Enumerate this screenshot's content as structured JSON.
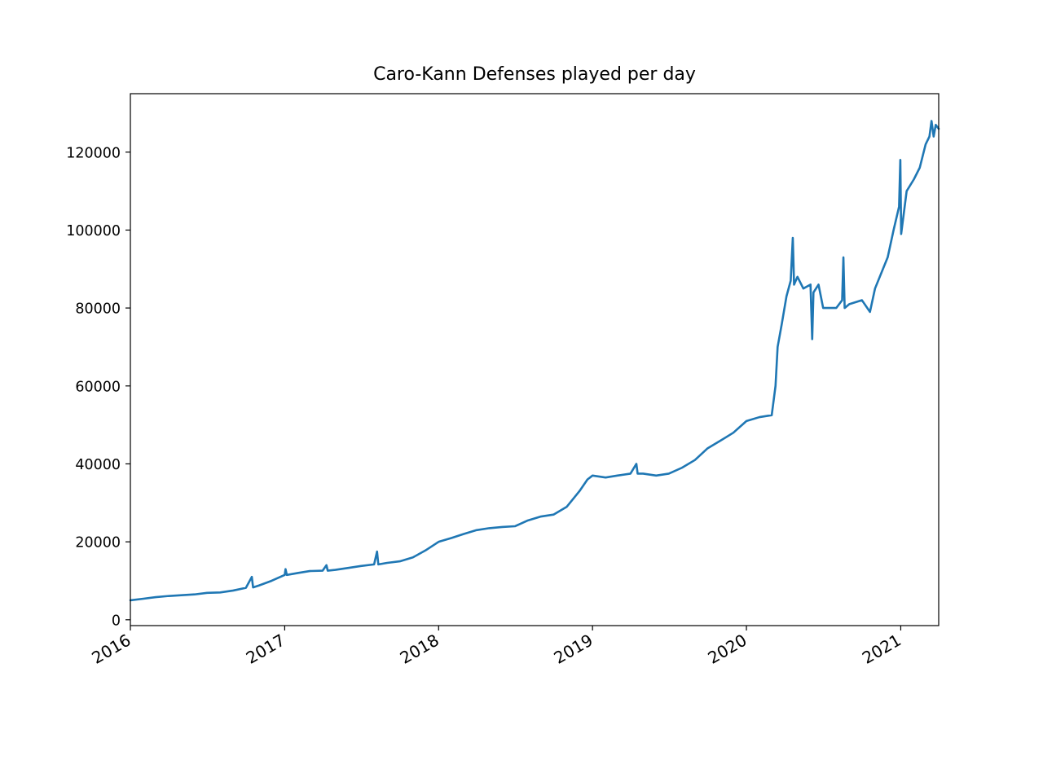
{
  "chart_data": {
    "type": "line",
    "title": "Caro-Kann Defenses played per day",
    "xlabel": "",
    "ylabel": "",
    "x_range": [
      "2016-01-01",
      "2021-04-01"
    ],
    "ylim": [
      -1500,
      135000
    ],
    "x_ticks": [
      {
        "label": "2016",
        "date": "2016-01-01"
      },
      {
        "label": "2017",
        "date": "2017-01-01"
      },
      {
        "label": "2018",
        "date": "2018-01-01"
      },
      {
        "label": "2019",
        "date": "2019-01-01"
      },
      {
        "label": "2020",
        "date": "2020-01-01"
      },
      {
        "label": "2021",
        "date": "2021-01-01"
      }
    ],
    "y_ticks": [
      {
        "label": "0",
        "value": 0
      },
      {
        "label": "20000",
        "value": 20000
      },
      {
        "label": "40000",
        "value": 40000
      },
      {
        "label": "60000",
        "value": 60000
      },
      {
        "label": "80000",
        "value": 80000
      },
      {
        "label": "100000",
        "value": 100000
      },
      {
        "label": "120000",
        "value": 120000
      }
    ],
    "grid": false,
    "series": [
      {
        "color": "#1f77b4",
        "points": [
          [
            "2016-01-01",
            5000
          ],
          [
            "2016-02-01",
            5400
          ],
          [
            "2016-03-01",
            5800
          ],
          [
            "2016-04-01",
            6100
          ],
          [
            "2016-05-01",
            6300
          ],
          [
            "2016-06-01",
            6500
          ],
          [
            "2016-07-01",
            6900
          ],
          [
            "2016-08-01",
            7000
          ],
          [
            "2016-09-01",
            7500
          ],
          [
            "2016-10-01",
            8200
          ],
          [
            "2016-10-15",
            11000
          ],
          [
            "2016-10-18",
            8300
          ],
          [
            "2016-11-01",
            8800
          ],
          [
            "2016-12-01",
            10000
          ],
          [
            "2017-01-01",
            11500
          ],
          [
            "2017-01-03",
            13000
          ],
          [
            "2017-01-06",
            11500
          ],
          [
            "2017-02-01",
            12000
          ],
          [
            "2017-03-01",
            12500
          ],
          [
            "2017-04-01",
            12600
          ],
          [
            "2017-04-10",
            14000
          ],
          [
            "2017-04-13",
            12600
          ],
          [
            "2017-05-01",
            12800
          ],
          [
            "2017-06-01",
            13300
          ],
          [
            "2017-07-01",
            13800
          ],
          [
            "2017-08-01",
            14200
          ],
          [
            "2017-08-08",
            17500
          ],
          [
            "2017-08-11",
            14200
          ],
          [
            "2017-09-01",
            14600
          ],
          [
            "2017-10-01",
            15000
          ],
          [
            "2017-11-01",
            16000
          ],
          [
            "2017-12-01",
            17800
          ],
          [
            "2018-01-01",
            20000
          ],
          [
            "2018-02-01",
            21000
          ],
          [
            "2018-03-01",
            22000
          ],
          [
            "2018-04-01",
            23000
          ],
          [
            "2018-05-01",
            23500
          ],
          [
            "2018-06-01",
            23800
          ],
          [
            "2018-07-01",
            24000
          ],
          [
            "2018-08-01",
            25500
          ],
          [
            "2018-09-01",
            26500
          ],
          [
            "2018-10-01",
            27000
          ],
          [
            "2018-11-01",
            29000
          ],
          [
            "2018-12-01",
            33000
          ],
          [
            "2018-12-20",
            36000
          ],
          [
            "2019-01-01",
            37000
          ],
          [
            "2019-02-01",
            36500
          ],
          [
            "2019-03-01",
            37000
          ],
          [
            "2019-04-01",
            37500
          ],
          [
            "2019-04-15",
            40000
          ],
          [
            "2019-04-18",
            37500
          ],
          [
            "2019-05-01",
            37500
          ],
          [
            "2019-06-01",
            37000
          ],
          [
            "2019-07-01",
            37500
          ],
          [
            "2019-08-01",
            39000
          ],
          [
            "2019-09-01",
            41000
          ],
          [
            "2019-10-01",
            44000
          ],
          [
            "2019-11-01",
            46000
          ],
          [
            "2019-12-01",
            48000
          ],
          [
            "2020-01-01",
            51000
          ],
          [
            "2020-02-01",
            52000
          ],
          [
            "2020-03-01",
            52500
          ],
          [
            "2020-03-10",
            60000
          ],
          [
            "2020-03-15",
            70000
          ],
          [
            "2020-03-25",
            76000
          ],
          [
            "2020-04-05",
            83000
          ],
          [
            "2020-04-15",
            87000
          ],
          [
            "2020-04-20",
            98000
          ],
          [
            "2020-04-23",
            86000
          ],
          [
            "2020-05-01",
            88000
          ],
          [
            "2020-05-15",
            85000
          ],
          [
            "2020-06-01",
            86000
          ],
          [
            "2020-06-05",
            72000
          ],
          [
            "2020-06-08",
            84000
          ],
          [
            "2020-06-20",
            86000
          ],
          [
            "2020-07-01",
            80000
          ],
          [
            "2020-08-01",
            80000
          ],
          [
            "2020-08-15",
            82000
          ],
          [
            "2020-08-18",
            93000
          ],
          [
            "2020-08-21",
            80000
          ],
          [
            "2020-09-01",
            81000
          ],
          [
            "2020-10-01",
            82000
          ],
          [
            "2020-10-20",
            79000
          ],
          [
            "2020-11-01",
            85000
          ],
          [
            "2020-12-01",
            93000
          ],
          [
            "2020-12-15",
            100000
          ],
          [
            "2020-12-28",
            106000
          ],
          [
            "2020-12-31",
            118000
          ],
          [
            "2021-01-02",
            99000
          ],
          [
            "2021-01-15",
            110000
          ],
          [
            "2021-02-01",
            113000
          ],
          [
            "2021-02-15",
            116000
          ],
          [
            "2021-03-01",
            122000
          ],
          [
            "2021-03-10",
            124000
          ],
          [
            "2021-03-15",
            128000
          ],
          [
            "2021-03-20",
            124000
          ],
          [
            "2021-03-25",
            127000
          ],
          [
            "2021-04-01",
            126000
          ]
        ]
      }
    ]
  }
}
